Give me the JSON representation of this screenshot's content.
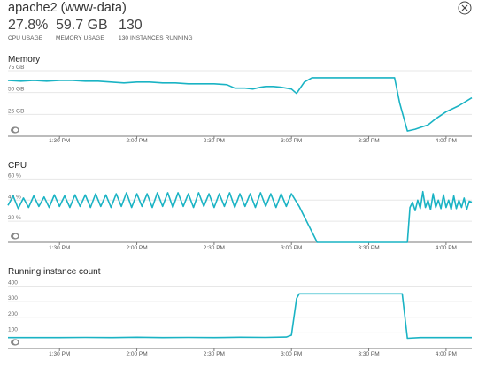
{
  "header": {
    "title": "apache2 (www-data)",
    "stats": [
      {
        "value": "27.8%",
        "label": "CPU USAGE"
      },
      {
        "value": "59.7 GB",
        "label": "MEMORY USAGE"
      },
      {
        "value": "130",
        "label": "130 INSTANCES RUNNING"
      }
    ]
  },
  "colors": {
    "line": "#1ab3c4",
    "axis": "#7a7a7a",
    "grid": "#e7e7e7"
  },
  "icons": {
    "close": "close-circle-icon",
    "chart_toggle": "eye-icon"
  },
  "chart_data": [
    {
      "type": "line",
      "title": "Memory",
      "x_tick_labels": [
        "1:30 PM",
        "2:00 PM",
        "2:30 PM",
        "3:00 PM",
        "3:30 PM",
        "4:00 PM"
      ],
      "x_range_minutes": [
        0,
        180
      ],
      "x_ticks_minutes": [
        20,
        50,
        80,
        110,
        140,
        170
      ],
      "y_tick_labels": [
        "25 GB",
        "50 GB",
        "75 GB"
      ],
      "y_ticks": [
        25,
        50,
        75
      ],
      "ylim": [
        0,
        75
      ],
      "grid": true,
      "series": [
        {
          "x": [
            0,
            5,
            10,
            15,
            20,
            25,
            30,
            35,
            40,
            45,
            50,
            55,
            60,
            65,
            70,
            75,
            80,
            85,
            88,
            92,
            95,
            98,
            100,
            103,
            106,
            108,
            110,
            112,
            115,
            118,
            120,
            125,
            130,
            135,
            140,
            145,
            150,
            152,
            155,
            158,
            160,
            163,
            166,
            170,
            175,
            180
          ],
          "y": [
            64,
            63,
            64,
            63,
            64,
            64,
            63,
            63,
            62,
            61,
            62,
            62,
            61,
            61,
            60,
            60,
            60,
            59,
            55,
            55,
            54,
            56,
            57,
            57,
            56,
            55,
            54,
            49,
            62,
            67,
            67,
            67,
            67,
            67,
            67,
            67,
            67,
            38,
            6,
            8,
            10,
            13,
            20,
            28,
            35,
            44
          ]
        }
      ]
    },
    {
      "type": "line",
      "title": "CPU",
      "x_tick_labels": [
        "1:30 PM",
        "2:00 PM",
        "2:30 PM",
        "3:00 PM",
        "3:30 PM",
        "4:00 PM"
      ],
      "x_range_minutes": [
        0,
        180
      ],
      "x_ticks_minutes": [
        20,
        50,
        80,
        110,
        140,
        170
      ],
      "y_tick_labels": [
        "20 %",
        "40 %",
        "60 %"
      ],
      "y_ticks": [
        20,
        40,
        60
      ],
      "ylim": [
        0,
        62
      ],
      "grid": true,
      "series": [
        {
          "x": [
            0,
            2,
            4,
            6,
            8,
            10,
            12,
            14,
            16,
            18,
            20,
            22,
            24,
            26,
            28,
            30,
            32,
            34,
            36,
            38,
            40,
            42,
            44,
            46,
            48,
            50,
            52,
            54,
            56,
            58,
            60,
            62,
            64,
            66,
            68,
            70,
            72,
            74,
            76,
            78,
            80,
            82,
            84,
            86,
            88,
            90,
            92,
            94,
            96,
            98,
            100,
            102,
            104,
            106,
            108,
            110,
            113,
            120,
            130,
            140,
            150,
            155,
            156,
            157,
            158,
            159,
            160,
            161,
            162,
            163,
            164,
            165,
            166,
            167,
            168,
            169,
            170,
            171,
            172,
            173,
            174,
            175,
            176,
            177,
            178,
            179,
            180
          ],
          "y": [
            35,
            44,
            32,
            42,
            33,
            44,
            34,
            43,
            33,
            45,
            34,
            44,
            33,
            45,
            34,
            45,
            33,
            46,
            34,
            45,
            33,
            46,
            34,
            47,
            33,
            46,
            34,
            46,
            33,
            47,
            34,
            47,
            33,
            47,
            34,
            46,
            33,
            47,
            34,
            46,
            33,
            46,
            34,
            47,
            33,
            46,
            34,
            46,
            33,
            47,
            34,
            46,
            33,
            46,
            34,
            46,
            34,
            0,
            0,
            0,
            0,
            0,
            33,
            38,
            30,
            40,
            32,
            48,
            33,
            40,
            31,
            46,
            33,
            40,
            32,
            45,
            33,
            40,
            31,
            44,
            32,
            40,
            33,
            42,
            31,
            39,
            38
          ]
        }
      ]
    },
    {
      "type": "line",
      "title": "Running instance count",
      "x_tick_labels": [
        "1:30 PM",
        "2:00 PM",
        "2:30 PM",
        "3:00 PM",
        "3:30 PM",
        "4:00 PM"
      ],
      "x_range_minutes": [
        0,
        180
      ],
      "x_ticks_minutes": [
        20,
        50,
        80,
        110,
        140,
        170
      ],
      "y_tick_labels": [
        "100",
        "200",
        "300",
        "400"
      ],
      "y_ticks": [
        100,
        200,
        300,
        400
      ],
      "ylim": [
        0,
        420
      ],
      "grid": true,
      "series": [
        {
          "x": [
            0,
            10,
            20,
            30,
            40,
            50,
            60,
            70,
            80,
            90,
            100,
            108,
            110,
            112,
            113,
            120,
            130,
            140,
            150,
            153,
            155,
            160,
            170,
            180
          ],
          "y": [
            70,
            70,
            70,
            71,
            70,
            72,
            70,
            71,
            70,
            72,
            71,
            73,
            85,
            320,
            350,
            350,
            350,
            350,
            350,
            350,
            65,
            70,
            70,
            70
          ]
        }
      ]
    }
  ]
}
